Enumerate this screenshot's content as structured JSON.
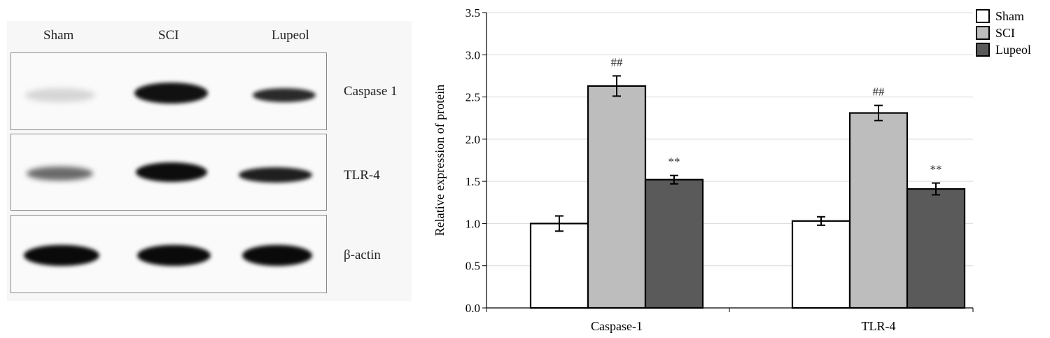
{
  "blot": {
    "lanes": [
      "Sham",
      "SCI",
      "Lupeol"
    ],
    "proteins": [
      "Caspase 1",
      "TLR-4",
      "β-actin"
    ]
  },
  "chart_data": {
    "type": "bar",
    "categories": [
      "Caspase-1",
      "TLR-4"
    ],
    "series": [
      {
        "name": "Sham",
        "values": [
          1.0,
          1.03
        ],
        "errors": [
          0.09,
          0.05
        ],
        "color": "#ffffff"
      },
      {
        "name": "SCI",
        "values": [
          2.63,
          2.31
        ],
        "errors": [
          0.12,
          0.09
        ],
        "color": "#bdbdbd"
      },
      {
        "name": "Lupeol",
        "values": [
          1.52,
          1.41
        ],
        "errors": [
          0.05,
          0.07
        ],
        "color": "#5a5a5a"
      }
    ],
    "annotations": [
      {
        "series": "SCI",
        "category": "Caspase-1",
        "text": "##"
      },
      {
        "series": "SCI",
        "category": "TLR-4",
        "text": "##"
      },
      {
        "series": "Lupeol",
        "category": "Caspase-1",
        "text": "**"
      },
      {
        "series": "Lupeol",
        "category": "TLR-4",
        "text": "**"
      }
    ],
    "ylabel": "Relative expression of protein",
    "xlabel": "",
    "ylim": [
      0,
      3.5
    ],
    "yticks": [
      "0.0",
      "0.5",
      "1.0",
      "1.5",
      "2.0",
      "2.5",
      "3.0",
      "3.5"
    ],
    "grid": true,
    "legend": "top-right"
  }
}
